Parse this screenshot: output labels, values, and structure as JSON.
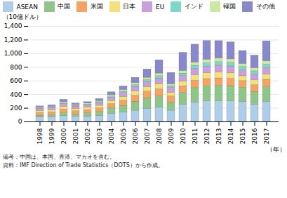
{
  "chart_data": {
    "type": "bar",
    "stacked": true,
    "ylabel": "（10億ドル）",
    "xlabel": "（年）",
    "annotations": [
      "備考：中国は、本国、香港、マカオを含む。",
      "資料：IMF Direction of Trade Statistics（DOTS）から作成。"
    ],
    "categories": [
      "1998",
      "1999",
      "2000",
      "2001",
      "2002",
      "2003",
      "2004",
      "2005",
      "2006",
      "2007",
      "2008",
      "2009",
      "2010",
      "2011",
      "2012",
      "2013",
      "2014",
      "2015",
      "2016",
      "2017"
    ],
    "series": [
      {
        "name": "ASEAN",
        "color": "#aecde8",
        "values": [
          65,
          70,
          85,
          75,
          80,
          90,
          115,
          135,
          165,
          195,
          210,
          165,
          250,
          285,
          300,
          305,
          305,
          295,
          255,
          295
        ]
      },
      {
        "name": "中国",
        "color": "#8ec68a",
        "values": [
          25,
          30,
          42,
          35,
          45,
          58,
          82,
          100,
          132,
          152,
          162,
          120,
          175,
          210,
          220,
          225,
          220,
          205,
          185,
          215
        ]
      },
      {
        "name": "米国",
        "color": "#f4a460",
        "values": [
          40,
          42,
          55,
          47,
          48,
          52,
          65,
          78,
          88,
          98,
          108,
          90,
          98,
          108,
          108,
          108,
          108,
          98,
          98,
          108
        ]
      },
      {
        "name": "日本",
        "color": "#f5e17a",
        "values": [
          32,
          30,
          42,
          35,
          35,
          37,
          46,
          54,
          62,
          68,
          74,
          55,
          68,
          82,
          86,
          86,
          80,
          72,
          72,
          78
        ]
      },
      {
        "name": "EU",
        "color": "#c9a0dc",
        "values": [
          30,
          30,
          40,
          34,
          36,
          40,
          50,
          58,
          68,
          72,
          82,
          68,
          82,
          92,
          96,
          100,
          100,
          86,
          86,
          90
        ]
      },
      {
        "name": "インド",
        "color": "#7dd8c8",
        "values": [
          6,
          8,
          10,
          8,
          10,
          12,
          15,
          18,
          24,
          28,
          34,
          26,
          36,
          46,
          50,
          52,
          52,
          48,
          46,
          52
        ]
      },
      {
        "name": "韓国",
        "color": "#cde8a0",
        "values": [
          12,
          13,
          17,
          14,
          15,
          17,
          22,
          26,
          30,
          35,
          40,
          30,
          40,
          50,
          52,
          54,
          52,
          46,
          46,
          50
        ]
      },
      {
        "name": "その他",
        "color": "#8888cc",
        "values": [
          18,
          22,
          35,
          22,
          22,
          30,
          40,
          52,
          78,
          122,
          195,
          165,
          265,
          260,
          275,
          255,
          250,
          190,
          185,
          295
        ]
      }
    ],
    "ylim": [
      0,
      1400
    ],
    "yticks": [
      0,
      200,
      400,
      600,
      800,
      {
        "value": 1000,
        "label": "1,000"
      },
      {
        "value": 1200,
        "label": "1,200"
      },
      {
        "value": 1400,
        "label": "1,400"
      }
    ],
    "grid": true,
    "legend": "upper left"
  }
}
